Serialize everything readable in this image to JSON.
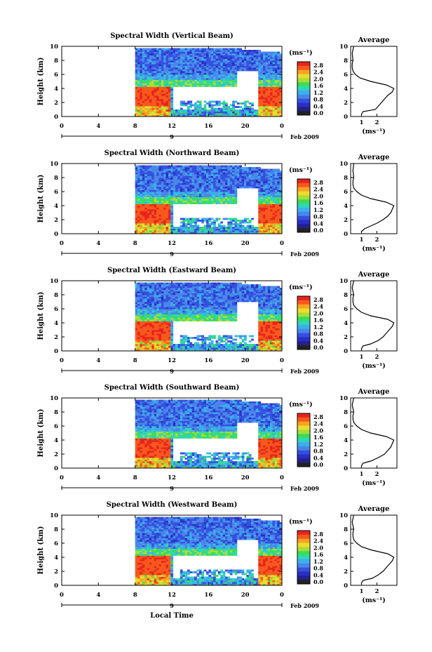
{
  "page": {
    "x_axis_label": "Local Time",
    "date_label": "Feb 2009",
    "day_label": "9"
  },
  "colorbar": {
    "unit_label": "(ms⁻¹)",
    "tick_labels": [
      "2.8",
      "2.4",
      "2.0",
      "1.6",
      "1.2",
      "0.8",
      "0.4",
      "0.0"
    ],
    "colors": [
      "#e8231e",
      "#f7591d",
      "#f6a323",
      "#eedc2c",
      "#a8dd3a",
      "#3ddc55",
      "#2fd6b8",
      "#3ab0ee",
      "#4a86e8",
      "#3550e0",
      "#2a2fc4",
      "#24208f",
      "#222222"
    ]
  },
  "chart_data": [
    {
      "type": "heatmap",
      "title": "Spectral Width (Vertical Beam)",
      "ylabel": "Height (km)",
      "x_ticks": [
        "0",
        "4",
        "8",
        "12",
        "16",
        "20",
        "0"
      ],
      "y_ticks": [
        "0",
        "2",
        "4",
        "6",
        "8",
        "10"
      ],
      "xlim": [
        0,
        24
      ],
      "ylim": [
        0,
        10
      ],
      "data_start_hour": 8,
      "profile": {
        "title": "Average",
        "x_ticks": [
          "1",
          "2"
        ],
        "y_ticks": [
          "0",
          "2",
          "4",
          "6",
          "8",
          "10"
        ],
        "xlabel": "(ms⁻¹)",
        "height_km": [
          0.3,
          0.7,
          1.0,
          1.5,
          2.0,
          2.5,
          3.0,
          3.5,
          4.0,
          4.5,
          5.0,
          5.5,
          6.0,
          6.5,
          7.0,
          7.5,
          8.0,
          9.0,
          10.0
        ],
        "width_ms": [
          1.0,
          1.1,
          1.9,
          2.1,
          2.3,
          2.5,
          2.7,
          3.0,
          3.1,
          2.6,
          1.6,
          0.9,
          0.6,
          0.45,
          0.4,
          0.4,
          0.45,
          0.4,
          0.5
        ]
      }
    },
    {
      "type": "heatmap",
      "title": "Spectral Width (Northward Beam)",
      "ylabel": "Height (km)",
      "x_ticks": [
        "0",
        "4",
        "8",
        "12",
        "16",
        "20",
        "0"
      ],
      "y_ticks": [
        "0",
        "2",
        "4",
        "6",
        "8",
        "10"
      ],
      "xlim": [
        0,
        24
      ],
      "ylim": [
        0,
        10
      ],
      "data_start_hour": 8,
      "profile": {
        "title": "Average",
        "x_ticks": [
          "1",
          "2"
        ],
        "y_ticks": [
          "0",
          "2",
          "4",
          "6",
          "8",
          "10"
        ],
        "xlabel": "(ms⁻¹)",
        "height_km": [
          0.3,
          0.7,
          1.0,
          1.5,
          2.0,
          2.5,
          3.0,
          3.5,
          4.0,
          4.5,
          5.0,
          5.5,
          6.0,
          6.5,
          7.0,
          7.5,
          8.0,
          9.0,
          10.0
        ],
        "width_ms": [
          1.0,
          1.2,
          1.5,
          2.0,
          2.4,
          2.7,
          2.9,
          3.0,
          3.1,
          2.6,
          1.6,
          1.0,
          0.7,
          0.5,
          0.45,
          0.45,
          0.5,
          0.45,
          0.5
        ]
      }
    },
    {
      "type": "heatmap",
      "title": "Spectral Width (Eastward Beam)",
      "ylabel": "Height (km)",
      "x_ticks": [
        "0",
        "4",
        "8",
        "12",
        "16",
        "20",
        "0"
      ],
      "y_ticks": [
        "0",
        "2",
        "4",
        "6",
        "8",
        "10"
      ],
      "xlim": [
        0,
        24
      ],
      "ylim": [
        0,
        10
      ],
      "data_start_hour": 8,
      "profile": {
        "title": "Average",
        "x_ticks": [
          "1",
          "2"
        ],
        "y_ticks": [
          "0",
          "2",
          "4",
          "6",
          "8",
          "10"
        ],
        "xlabel": "(ms⁻¹)",
        "height_km": [
          0.3,
          0.7,
          1.0,
          1.5,
          2.0,
          2.5,
          3.0,
          3.5,
          4.0,
          4.5,
          5.0,
          5.5,
          6.0,
          6.5,
          7.0,
          7.5,
          8.0,
          9.0,
          10.0
        ],
        "width_ms": [
          1.0,
          1.1,
          1.6,
          2.1,
          2.4,
          2.6,
          2.8,
          3.0,
          3.1,
          2.7,
          1.6,
          1.0,
          0.7,
          0.5,
          0.45,
          0.45,
          0.5,
          0.4,
          0.5
        ]
      }
    },
    {
      "type": "heatmap",
      "title": "Spectral Width (Southward Beam)",
      "ylabel": "Height (km)",
      "x_ticks": [
        "0",
        "4",
        "8",
        "12",
        "16",
        "20",
        "0"
      ],
      "y_ticks": [
        "0",
        "2",
        "4",
        "6",
        "8",
        "10"
      ],
      "xlim": [
        0,
        24
      ],
      "ylim": [
        0,
        10
      ],
      "data_start_hour": 8,
      "profile": {
        "title": "Average",
        "x_ticks": [
          "1",
          "2"
        ],
        "y_ticks": [
          "0",
          "2",
          "4",
          "6",
          "8",
          "10"
        ],
        "xlabel": "(ms⁻¹)",
        "height_km": [
          0.3,
          0.7,
          1.0,
          1.5,
          2.0,
          2.5,
          3.0,
          3.5,
          4.0,
          4.5,
          5.0,
          5.5,
          6.0,
          6.5,
          7.0,
          7.5,
          8.0,
          9.0,
          10.0
        ],
        "width_ms": [
          1.0,
          1.1,
          1.6,
          2.1,
          2.5,
          2.7,
          2.9,
          3.0,
          3.1,
          2.6,
          1.6,
          1.0,
          0.7,
          0.5,
          0.45,
          0.45,
          0.5,
          0.4,
          0.5
        ]
      }
    },
    {
      "type": "heatmap",
      "title": "Spectral Width (Westward Beam)",
      "ylabel": "Height (km)",
      "x_ticks": [
        "0",
        "4",
        "8",
        "12",
        "16",
        "20",
        "0"
      ],
      "y_ticks": [
        "0",
        "2",
        "4",
        "6",
        "8",
        "10"
      ],
      "xlim": [
        0,
        24
      ],
      "ylim": [
        0,
        10
      ],
      "data_start_hour": 8,
      "profile": {
        "title": "Average",
        "x_ticks": [
          "1",
          "2"
        ],
        "y_ticks": [
          "0",
          "2",
          "4",
          "6",
          "8",
          "10"
        ],
        "xlabel": "(ms⁻¹)",
        "height_km": [
          0.3,
          0.7,
          1.0,
          1.5,
          2.0,
          2.5,
          3.0,
          3.5,
          4.0,
          4.5,
          5.0,
          5.5,
          6.0,
          6.5,
          7.0,
          7.5,
          8.0,
          9.0,
          10.0
        ],
        "width_ms": [
          1.0,
          1.1,
          1.7,
          2.1,
          2.4,
          2.6,
          2.8,
          3.0,
          3.1,
          2.7,
          1.7,
          1.0,
          0.7,
          0.5,
          0.45,
          0.45,
          0.5,
          0.4,
          0.5
        ]
      }
    }
  ]
}
